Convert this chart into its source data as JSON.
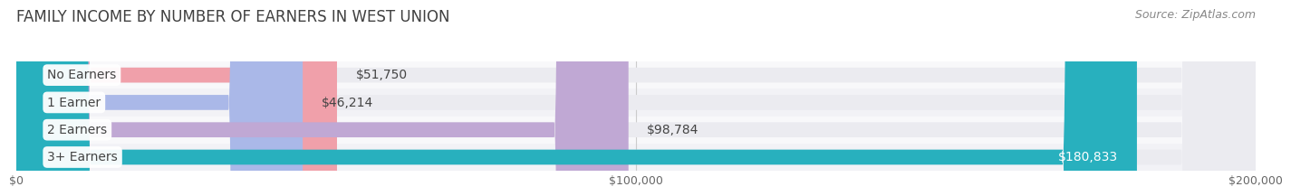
{
  "title": "FAMILY INCOME BY NUMBER OF EARNERS IN WEST UNION",
  "source": "Source: ZipAtlas.com",
  "categories": [
    "No Earners",
    "1 Earner",
    "2 Earners",
    "3+ Earners"
  ],
  "values": [
    51750,
    46214,
    98784,
    180833
  ],
  "bar_colors": [
    "#f0a0aa",
    "#aab8e8",
    "#c0a8d4",
    "#28b0be"
  ],
  "value_labels": [
    "$51,750",
    "$46,214",
    "$98,784",
    "$180,833"
  ],
  "value_label_inside": [
    false,
    false,
    false,
    true
  ],
  "xlim": [
    0,
    200000
  ],
  "xticks": [
    0,
    100000,
    200000
  ],
  "xtick_labels": [
    "$0",
    "$100,000",
    "$200,000"
  ],
  "background_color": "#ffffff",
  "bar_bg_color": "#ebebf0",
  "row_bg_colors": [
    "#f8f8fa",
    "#f2f2f6",
    "#f8f8fa",
    "#f2f2f6"
  ],
  "title_fontsize": 12,
  "source_fontsize": 9,
  "label_fontsize": 10,
  "value_fontsize": 10,
  "bar_height": 0.55
}
